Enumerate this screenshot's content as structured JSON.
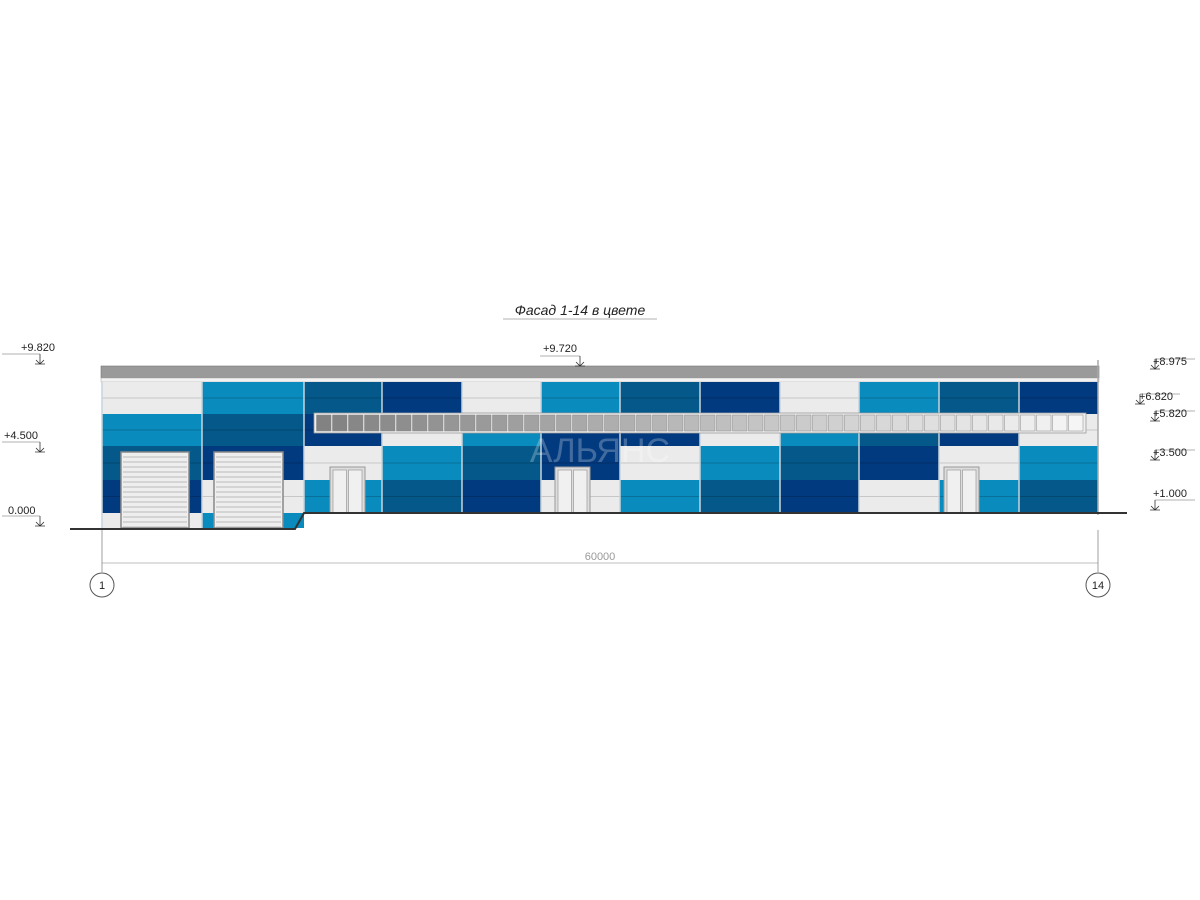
{
  "title": "Фасад 1-14 в цвете",
  "colors": {
    "W": "#ebebeb",
    "L": "#0a8bbd",
    "M": "#05598a",
    "D": "#023a7f",
    "roof": "#9a9a9a"
  },
  "bays": [
    [
      "W",
      "L",
      "M",
      "D",
      "W"
    ],
    [
      "L",
      "M",
      "D",
      "W",
      "L"
    ],
    [
      "M",
      "D",
      "W",
      "L",
      null
    ],
    [
      "D",
      "W",
      "L",
      "M",
      null
    ],
    [
      "W",
      "L",
      "M",
      "D",
      null
    ],
    [
      "L",
      "D",
      "D",
      "W",
      null
    ],
    [
      "M",
      "D",
      "W",
      "L",
      null
    ],
    [
      "D",
      "W",
      "L",
      "M",
      null
    ],
    [
      "W",
      "L",
      "M",
      "D",
      null
    ],
    [
      "L",
      "M",
      "D",
      "W",
      null
    ],
    [
      "M",
      "D",
      "W",
      "L",
      null
    ],
    [
      "D",
      "W",
      "L",
      "M",
      null
    ]
  ],
  "gates": [
    1,
    2
  ],
  "doors": [
    3,
    6,
    11
  ],
  "levels_left": [
    "+9.820",
    "+4.500",
    "0.000"
  ],
  "level_top": "+9.720",
  "levels_right": [
    "+8.975",
    "+6.820",
    "+5.820",
    "+3.500",
    "+1.000"
  ],
  "dimension": "60000",
  "axes": [
    "1",
    "14"
  ],
  "watermark": "АЛЬЯНС"
}
